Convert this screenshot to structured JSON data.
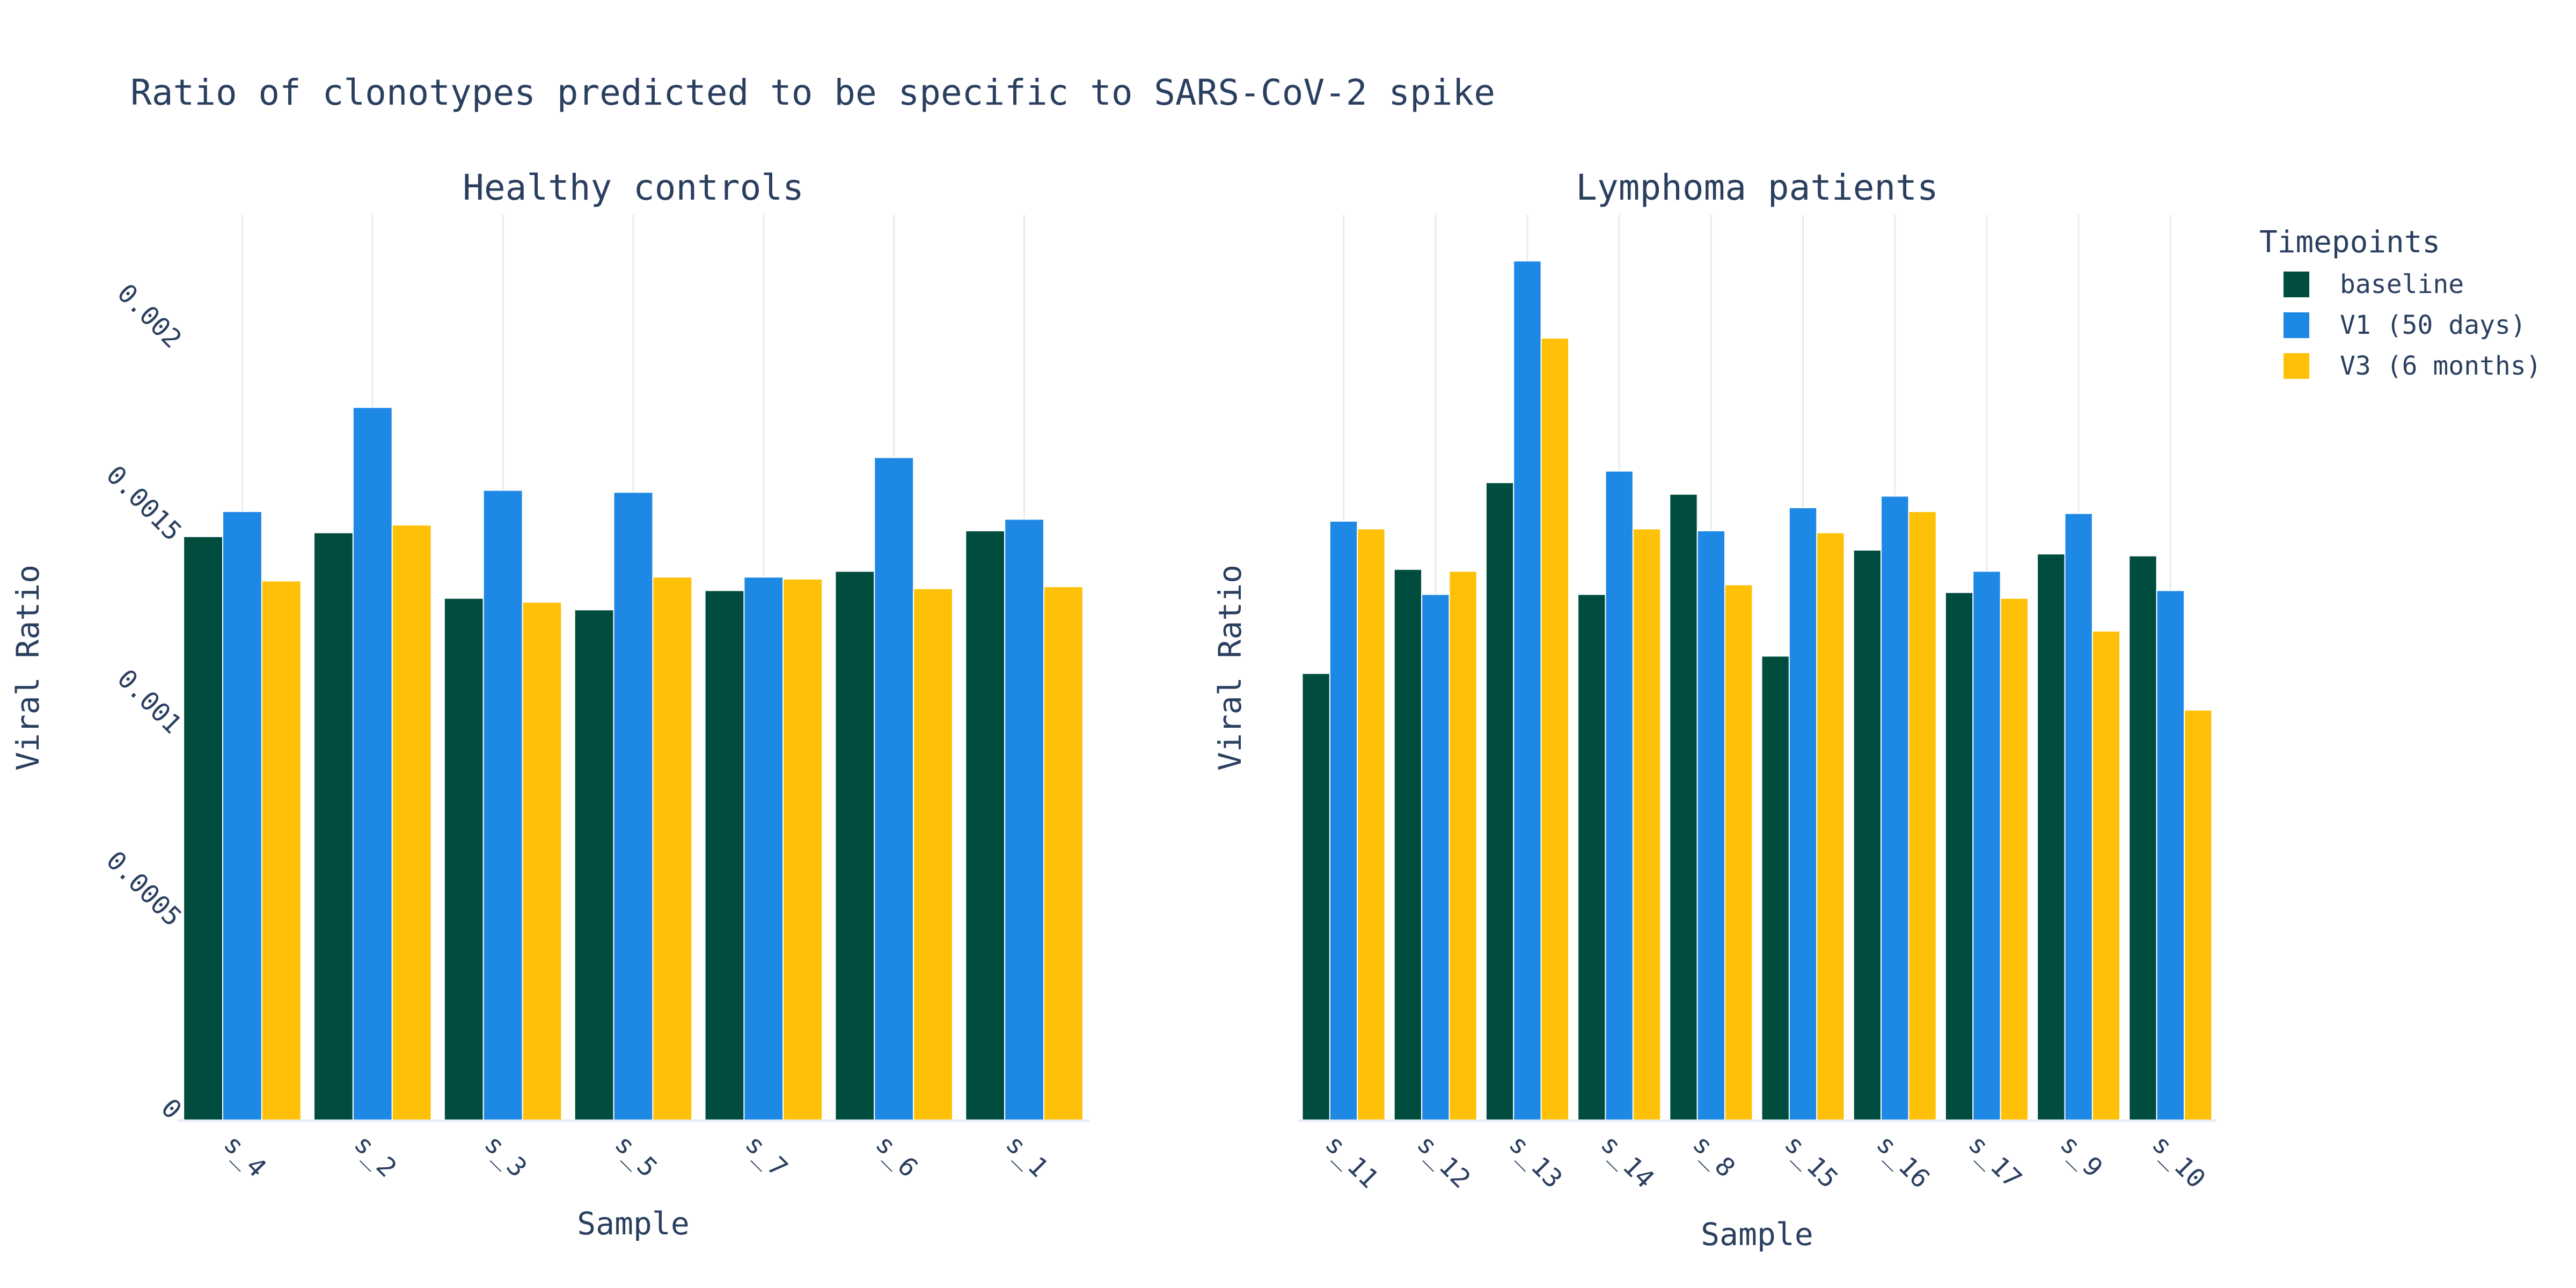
{
  "chart_data": {
    "type": "bar",
    "title": "Ratio of clonotypes predicted to be specific to SARS-CoV-2 spike",
    "legend": {
      "title": "Timepoints",
      "placement": "top-right",
      "items": [
        {
          "name": "baseline",
          "color": "#004d40"
        },
        {
          "name": "V1 (50 days)",
          "color": "#1e88e5"
        },
        {
          "name": "V3 (6 months)",
          "color": "#ffc107"
        }
      ]
    },
    "grid": {
      "x": true,
      "y": false
    },
    "panels": [
      {
        "subtitle": "Healthy controls",
        "xlabel": "Sample",
        "ylabel": "Viral Ratio",
        "ylim": [
          0,
          0.00235
        ],
        "yticks": [
          0,
          0.0005,
          0.001,
          0.0015,
          0.002
        ],
        "ytick_labels": [
          "0",
          "0.0005",
          "0.001",
          "0.0015",
          "0.002"
        ],
        "categories": [
          "s_4",
          "s_2",
          "s_3",
          "s_5",
          "s_7",
          "s_6",
          "s_1"
        ],
        "series": [
          {
            "name": "baseline",
            "values": [
              0.001515,
              0.001525,
              0.001355,
              0.001325,
              0.001375,
              0.001425,
              0.00153
            ]
          },
          {
            "name": "V1 (50 days)",
            "values": [
              0.00158,
              0.00185,
              0.001635,
              0.00163,
              0.00141,
              0.00172,
              0.00156
            ]
          },
          {
            "name": "V3 (6 months)",
            "values": [
              0.0014,
              0.001545,
              0.001345,
              0.00141,
              0.001405,
              0.00138,
              0.001385
            ]
          }
        ]
      },
      {
        "subtitle": "Lymphoma patients",
        "xlabel": "Sample",
        "ylabel": "Viral Ratio",
        "ylim": [
          0,
          0.00235
        ],
        "yticks": [],
        "ytick_labels": [],
        "categories": [
          "s_11",
          "s_12",
          "s_13",
          "s_14",
          "s_8",
          "s_15",
          "s_16",
          "s_17",
          "s_9",
          "s_10"
        ],
        "series": [
          {
            "name": "baseline",
            "values": [
              0.00116,
              0.00143,
              0.001655,
              0.001365,
              0.001625,
              0.001205,
              0.00148,
              0.00137,
              0.00147,
              0.001465
            ]
          },
          {
            "name": "V1 (50 days)",
            "values": [
              0.001555,
              0.001365,
              0.00223,
              0.001685,
              0.00153,
              0.00159,
              0.00162,
              0.001425,
              0.001575,
              0.001375
            ]
          },
          {
            "name": "V3 (6 months)",
            "values": [
              0.001535,
              0.001425,
              0.00203,
              0.001535,
              0.00139,
              0.001525,
              0.00158,
              0.001355,
              0.00127,
              0.001065
            ]
          }
        ]
      }
    ]
  }
}
